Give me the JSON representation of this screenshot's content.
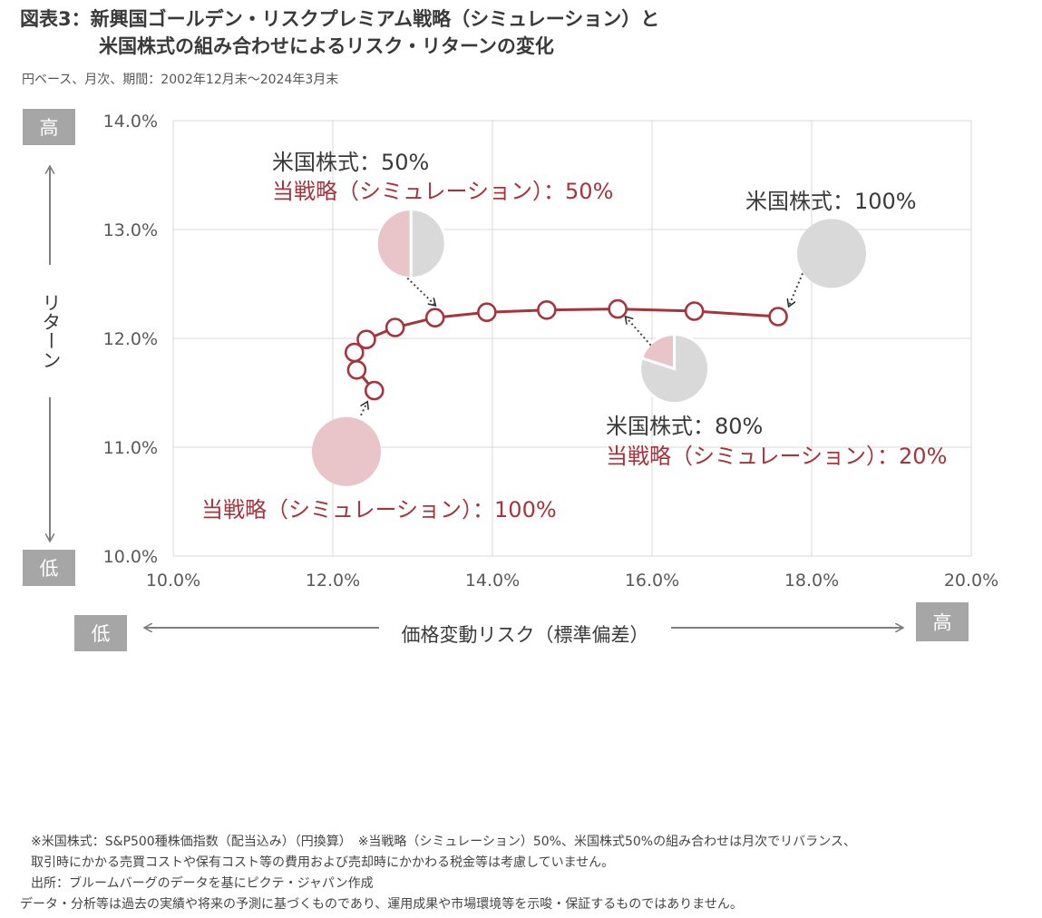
{
  "header": {
    "title_line1": "図表3：新興国ゴールデン・リスクプレミアム戦略（シミュレーション）と",
    "title_line2": "米国株式の組み合わせによるリスク・リターンの変化",
    "subtitle": "円ベース、月次、期間：2002年12月末～2024年3月末"
  },
  "chart_data": {
    "type": "scatter",
    "title": "図表3：新興国ゴールデン・リスクプレミアム戦略（シミュレーション）と米国株式の組み合わせによるリスク・リターンの変化",
    "xlabel": "価格変動リスク（標準偏差）",
    "ylabel": "リターン",
    "xlim": [
      10.0,
      20.0
    ],
    "ylim": [
      10.0,
      14.0
    ],
    "x_ticks": [
      "10.0%",
      "12.0%",
      "14.0%",
      "16.0%",
      "18.0%",
      "20.0%"
    ],
    "y_ticks": [
      "10.0%",
      "11.0%",
      "12.0%",
      "13.0%",
      "14.0%"
    ],
    "grid": true,
    "series": [
      {
        "name": "",
        "color": "#a5343d",
        "points": [
          {
            "x": 12.52,
            "y": 11.52
          },
          {
            "x": 12.3,
            "y": 11.71
          },
          {
            "x": 12.27,
            "y": 11.87
          },
          {
            "x": 12.42,
            "y": 11.99
          },
          {
            "x": 12.78,
            "y": 12.1
          },
          {
            "x": 13.28,
            "y": 12.19
          },
          {
            "x": 13.93,
            "y": 12.24
          },
          {
            "x": 14.68,
            "y": 12.26
          },
          {
            "x": 15.57,
            "y": 12.27
          },
          {
            "x": 16.53,
            "y": 12.25
          },
          {
            "x": 17.58,
            "y": 12.2
          }
        ]
      }
    ],
    "pies": [
      {
        "us_share": 0.5,
        "cx": 12.98,
        "cy": 12.87
      },
      {
        "us_share": 1.0,
        "cx": 18.25,
        "cy": 12.78
      },
      {
        "us_share": 0.8,
        "cx": 16.28,
        "cy": 11.72
      },
      {
        "us_share": 0.0,
        "cx": 12.17,
        "cy": 10.96
      }
    ],
    "pie_colors": {
      "us": "#d9d9d9",
      "strategy": "#e9c4c8"
    },
    "annotations": [
      {
        "text_black": "米国株式：50%",
        "text_red": "当戦略（シミュレーション）：50%"
      },
      {
        "text_black": "米国株式：100%",
        "text_red": ""
      },
      {
        "text_black": "米国株式：80%",
        "text_red": "当戦略（シミュレーション）：20%"
      },
      {
        "text_black": "",
        "text_red": "当戦略（シミュレーション）：100%"
      }
    ],
    "axis_badges": {
      "high": "高",
      "low": "低"
    }
  },
  "notes": {
    "line1": "※米国株式：S&P500種株価指数（配当込み）（円換算）　※当戦略（シミュレーション）50%、米国株式50%の組み合わせは月次でリバランス、",
    "line2": "取引時にかかる売買コストや保有コスト等の費用および売却時にかかわる税金等は考慮していません。",
    "line3": "出所：ブルームバーグのデータを基にピクテ・ジャパン作成",
    "line4": "データ・分析等は過去の実績や将来の予測に基づくものであり、運用成果や市場環境等を示唆・保証するものではありません。"
  },
  "colors": {
    "accent_red": "#a5343d",
    "grid": "#d9d9d9",
    "badge": "#a6a6a6",
    "arrow": "#7f7f7f"
  }
}
